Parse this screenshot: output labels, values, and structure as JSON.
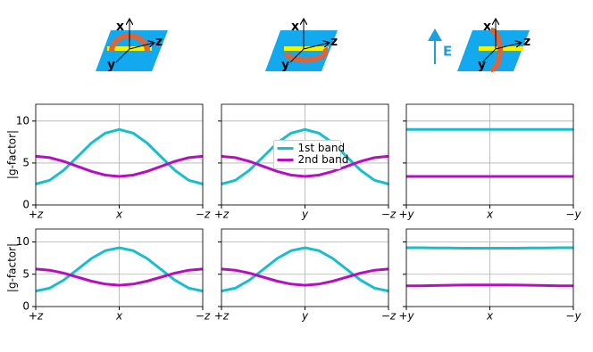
{
  "diagrams": [
    {
      "x": "x",
      "y": "y",
      "z": "z"
    },
    {
      "x": "x",
      "y": "y",
      "z": "z"
    },
    {
      "x": "x",
      "y": "y",
      "z": "z",
      "field": "E"
    }
  ],
  "chart_data": [
    {
      "type": "line",
      "ylabel": "|g-factor|",
      "x": [
        0,
        15,
        30,
        45,
        60,
        75,
        90,
        105,
        120,
        135,
        150,
        165,
        180
      ],
      "xlim": [
        0,
        180
      ],
      "xticks": [
        {
          "value": 0,
          "label": "+z"
        },
        {
          "value": 90,
          "label": "x"
        },
        {
          "value": 180,
          "label": "−z"
        }
      ],
      "ylim": [
        0,
        12
      ],
      "yticks": [
        0,
        5,
        10
      ],
      "grid": true,
      "series": [
        {
          "name": "1st band",
          "color": "#17becf",
          "values": [
            2.5,
            2.94,
            4.13,
            5.75,
            7.38,
            8.56,
            9.0,
            8.56,
            7.38,
            5.75,
            4.13,
            2.94,
            2.5
          ]
        },
        {
          "name": "2nd band",
          "color": "#b50fbf",
          "values": [
            5.8,
            5.64,
            5.2,
            4.6,
            4.0,
            3.56,
            3.4,
            3.56,
            4.0,
            4.6,
            5.2,
            5.64,
            5.8
          ]
        }
      ]
    },
    {
      "type": "line",
      "x": [
        0,
        15,
        30,
        45,
        60,
        75,
        90,
        105,
        120,
        135,
        150,
        165,
        180
      ],
      "xlim": [
        0,
        180
      ],
      "xticks": [
        {
          "value": 0,
          "label": "+z"
        },
        {
          "value": 90,
          "label": "y"
        },
        {
          "value": 180,
          "label": "−z"
        }
      ],
      "ylim": [
        0,
        12
      ],
      "yticks": [
        0,
        5,
        10
      ],
      "grid": true,
      "legend": "center",
      "series": [
        {
          "name": "1st band",
          "color": "#17becf",
          "values": [
            2.5,
            2.94,
            4.13,
            5.75,
            7.38,
            8.56,
            9.0,
            8.56,
            7.38,
            5.75,
            4.13,
            2.94,
            2.5
          ]
        },
        {
          "name": "2nd band",
          "color": "#b50fbf",
          "values": [
            5.8,
            5.64,
            5.2,
            4.6,
            4.0,
            3.56,
            3.4,
            3.56,
            4.0,
            4.6,
            5.2,
            5.64,
            5.8
          ]
        }
      ]
    },
    {
      "type": "line",
      "x": [
        0,
        15,
        30,
        45,
        60,
        75,
        90,
        105,
        120,
        135,
        150,
        165,
        180
      ],
      "xlim": [
        0,
        180
      ],
      "xticks": [
        {
          "value": 0,
          "label": "+y"
        },
        {
          "value": 90,
          "label": "x"
        },
        {
          "value": 180,
          "label": "−y"
        }
      ],
      "ylim": [
        0,
        12
      ],
      "yticks": [
        0,
        5,
        10
      ],
      "grid": true,
      "series": [
        {
          "name": "1st band",
          "color": "#17becf",
          "values": [
            9.0,
            9.0,
            9.0,
            9.0,
            9.0,
            9.0,
            9.0,
            9.0,
            9.0,
            9.0,
            9.0,
            9.0,
            9.0
          ]
        },
        {
          "name": "2nd band",
          "color": "#b50fbf",
          "values": [
            3.4,
            3.4,
            3.4,
            3.4,
            3.4,
            3.4,
            3.4,
            3.4,
            3.4,
            3.4,
            3.4,
            3.4,
            3.4
          ]
        }
      ]
    },
    {
      "type": "line",
      "ylabel": "|g-factor|",
      "x": [
        0,
        15,
        30,
        45,
        60,
        75,
        90,
        105,
        120,
        135,
        150,
        165,
        180
      ],
      "xlim": [
        0,
        180
      ],
      "xticks": [
        {
          "value": 0,
          "label": "+z"
        },
        {
          "value": 90,
          "label": "x"
        },
        {
          "value": 180,
          "label": "−z"
        }
      ],
      "ylim": [
        0,
        12
      ],
      "yticks": [
        0,
        5,
        10
      ],
      "grid": true,
      "series": [
        {
          "name": "1st band",
          "color": "#17becf",
          "values": [
            2.4,
            2.86,
            4.08,
            5.75,
            7.43,
            8.65,
            9.1,
            8.65,
            7.43,
            5.75,
            4.08,
            2.86,
            2.4
          ]
        },
        {
          "name": "2nd band",
          "color": "#b50fbf",
          "values": [
            5.8,
            5.63,
            5.18,
            4.55,
            3.93,
            3.47,
            3.3,
            3.47,
            3.93,
            4.55,
            5.18,
            5.63,
            5.8
          ]
        }
      ]
    },
    {
      "type": "line",
      "x": [
        0,
        15,
        30,
        45,
        60,
        75,
        90,
        105,
        120,
        135,
        150,
        165,
        180
      ],
      "xlim": [
        0,
        180
      ],
      "xticks": [
        {
          "value": 0,
          "label": "+z"
        },
        {
          "value": 90,
          "label": "y"
        },
        {
          "value": 180,
          "label": "−z"
        }
      ],
      "ylim": [
        0,
        12
      ],
      "yticks": [
        0,
        5,
        10
      ],
      "grid": true,
      "series": [
        {
          "name": "1st band",
          "color": "#17becf",
          "values": [
            2.4,
            2.86,
            4.08,
            5.75,
            7.43,
            8.65,
            9.1,
            8.65,
            7.43,
            5.75,
            4.08,
            2.86,
            2.4
          ]
        },
        {
          "name": "2nd band",
          "color": "#b50fbf",
          "values": [
            5.8,
            5.63,
            5.18,
            4.55,
            3.93,
            3.47,
            3.3,
            3.47,
            3.93,
            4.55,
            5.18,
            5.63,
            5.8
          ]
        }
      ]
    },
    {
      "type": "line",
      "x": [
        0,
        15,
        30,
        45,
        60,
        75,
        90,
        105,
        120,
        135,
        150,
        165,
        180
      ],
      "xlim": [
        0,
        180
      ],
      "xticks": [
        {
          "value": 0,
          "label": "+y"
        },
        {
          "value": 90,
          "label": "x"
        },
        {
          "value": 180,
          "label": "−y"
        }
      ],
      "ylim": [
        0,
        12
      ],
      "yticks": [
        0,
        5,
        10
      ],
      "grid": true,
      "series": [
        {
          "name": "1st band",
          "color": "#17becf",
          "values": [
            9.1,
            9.1,
            9.08,
            9.06,
            9.04,
            9.03,
            9.03,
            9.03,
            9.04,
            9.06,
            9.08,
            9.1,
            9.1
          ]
        },
        {
          "name": "2nd band",
          "color": "#b50fbf",
          "values": [
            3.2,
            3.22,
            3.26,
            3.3,
            3.33,
            3.35,
            3.35,
            3.35,
            3.33,
            3.3,
            3.26,
            3.22,
            3.2
          ]
        }
      ]
    }
  ]
}
